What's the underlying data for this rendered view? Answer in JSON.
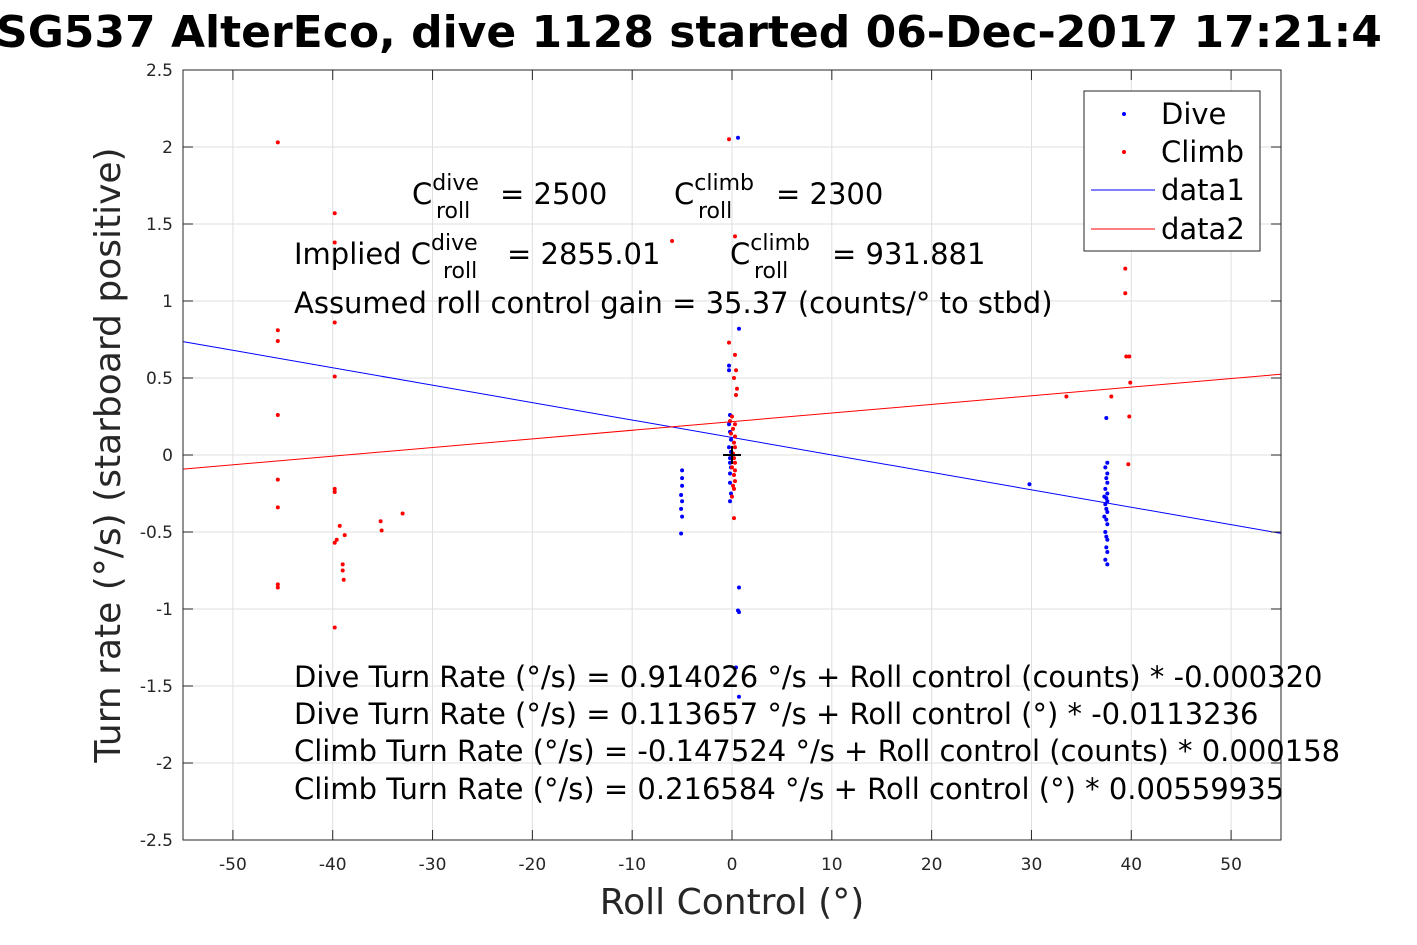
{
  "chart_data": {
    "type": "scatter",
    "title": "SG537 AlterEco, dive 1128 started 06-Dec-2017 17:21:4",
    "xlabel": "Roll Control (°)",
    "ylabel": "Turn rate (°/s) (starboard positive)",
    "xlim": [
      -55,
      55
    ],
    "ylim": [
      -2.5,
      2.5
    ],
    "xticks": [
      "-50",
      "-40",
      "-30",
      "-20",
      "-10",
      "0",
      "10",
      "20",
      "30",
      "40",
      "50"
    ],
    "yticks": [
      "-2.5",
      "-2",
      "-1.5",
      "-1",
      "-0.5",
      "0",
      "0.5",
      "1",
      "1.5",
      "2",
      "2.5"
    ],
    "grid": true,
    "legend_position": "top-right",
    "legend": [
      "Dive",
      "Climb",
      "data1",
      "data2"
    ],
    "colors": {
      "dive": "#0000ff",
      "climb": "#ff0000"
    },
    "annotations": {
      "c_dive_prefix": "C",
      "c_dive_sup": "dive",
      "c_dive_sub": "roll",
      "c_dive_val": "= 2500",
      "c_climb_prefix": "C",
      "c_climb_sup": "climb",
      "c_climb_sub": "roll",
      "c_climb_val": "= 2300",
      "implied_prefix": "Implied C",
      "implied_dive_sup": "dive",
      "implied_dive_sub": "roll",
      "implied_dive_val": "= 2855.01",
      "implied_climb_prefix": "C",
      "implied_climb_sup": "climb",
      "implied_climb_sub": "roll",
      "implied_climb_val": "= 931.881",
      "gain": "Assumed roll control gain = 35.37 (counts/° to stbd)",
      "eq1": "Dive Turn Rate (°/s) = 0.914026 °/s + Roll control (counts) * -0.000320",
      "eq2": "Dive Turn Rate (°/s) = 0.113657 °/s + Roll control (°) * -0.0113236",
      "eq3": "Climb Turn Rate (°/s) = -0.147524 °/s + Roll control (counts) * 0.000158",
      "eq4": "Climb Turn Rate (°/s) = 0.216584 °/s + Roll control (°) * 0.00559935"
    },
    "series": [
      {
        "name": "Dive",
        "kind": "scatter",
        "points": [
          [
            0.6,
            2.06
          ],
          [
            0.7,
            0.82
          ],
          [
            -0.3,
            0.58
          ],
          [
            -0.3,
            0.55
          ],
          [
            -0.2,
            0.26
          ],
          [
            -0.3,
            0.2
          ],
          [
            -0.2,
            0.15
          ],
          [
            -0.1,
            0.1
          ],
          [
            -0.3,
            0.05
          ],
          [
            -0.1,
            0.02
          ],
          [
            -0.2,
            -0.02
          ],
          [
            -0.2,
            -0.05
          ],
          [
            -0.1,
            -0.08
          ],
          [
            -0.2,
            -0.12
          ],
          [
            -0.2,
            -0.18
          ],
          [
            -0.1,
            -0.25
          ],
          [
            -0.2,
            -0.3
          ],
          [
            0.7,
            -0.86
          ],
          [
            0.6,
            -1.01
          ],
          [
            0.7,
            -1.02
          ],
          [
            0.4,
            -1.38
          ],
          [
            0.7,
            -1.57
          ],
          [
            -5.0,
            -0.1
          ],
          [
            -5.0,
            -0.15
          ],
          [
            -5.0,
            -0.2
          ],
          [
            -5.1,
            -0.26
          ],
          [
            -5.0,
            -0.3
          ],
          [
            -5.1,
            -0.35
          ],
          [
            -5.0,
            -0.4
          ],
          [
            -5.1,
            -0.51
          ],
          [
            29.8,
            -0.19
          ],
          [
            37.5,
            0.24
          ],
          [
            37.6,
            -0.05
          ],
          [
            37.4,
            -0.08
          ],
          [
            37.6,
            -0.12
          ],
          [
            37.5,
            -0.15
          ],
          [
            37.6,
            -0.18
          ],
          [
            37.4,
            -0.22
          ],
          [
            37.6,
            -0.25
          ],
          [
            37.3,
            -0.27
          ],
          [
            37.5,
            -0.28
          ],
          [
            37.6,
            -0.3
          ],
          [
            37.4,
            -0.32
          ],
          [
            37.5,
            -0.35
          ],
          [
            37.6,
            -0.37
          ],
          [
            37.3,
            -0.4
          ],
          [
            37.5,
            -0.42
          ],
          [
            37.6,
            -0.45
          ],
          [
            37.4,
            -0.5
          ],
          [
            37.5,
            -0.53
          ],
          [
            37.6,
            -0.55
          ],
          [
            37.5,
            -0.6
          ],
          [
            37.6,
            -0.63
          ],
          [
            37.4,
            -0.68
          ],
          [
            37.6,
            -0.71
          ]
        ]
      },
      {
        "name": "Climb",
        "kind": "scatter",
        "points": [
          [
            -45.5,
            2.03
          ],
          [
            -45.5,
            0.81
          ],
          [
            -45.5,
            0.74
          ],
          [
            -45.5,
            0.26
          ],
          [
            -45.5,
            -0.16
          ],
          [
            -45.5,
            -0.34
          ],
          [
            -45.5,
            -0.84
          ],
          [
            -45.5,
            -0.86
          ],
          [
            -39.8,
            1.57
          ],
          [
            -39.8,
            1.38
          ],
          [
            -39.8,
            0.86
          ],
          [
            -39.8,
            0.51
          ],
          [
            -39.8,
            -0.22
          ],
          [
            -39.8,
            -0.24
          ],
          [
            -39.8,
            -0.57
          ],
          [
            -39.8,
            -1.12
          ],
          [
            -39.6,
            -0.55
          ],
          [
            -39.3,
            -0.46
          ],
          [
            -38.8,
            -0.52
          ],
          [
            -39.0,
            -0.71
          ],
          [
            -39.0,
            -0.75
          ],
          [
            -38.9,
            -0.81
          ],
          [
            -35.2,
            -0.43
          ],
          [
            -35.1,
            -0.49
          ],
          [
            -33.0,
            -0.38
          ],
          [
            -6.0,
            1.39
          ],
          [
            -0.3,
            2.05
          ],
          [
            0.3,
            1.42
          ],
          [
            -0.3,
            0.73
          ],
          [
            0.3,
            0.65
          ],
          [
            0.4,
            0.55
          ],
          [
            0.2,
            0.5
          ],
          [
            0.5,
            0.43
          ],
          [
            0.4,
            0.39
          ],
          [
            0.0,
            0.25
          ],
          [
            -0.2,
            0.22
          ],
          [
            0.3,
            0.2
          ],
          [
            0.1,
            0.17
          ],
          [
            -0.1,
            0.14
          ],
          [
            0.3,
            0.12
          ],
          [
            0.2,
            0.08
          ],
          [
            0.3,
            0.05
          ],
          [
            0.1,
            0.01
          ],
          [
            0.2,
            -0.02
          ],
          [
            0.3,
            -0.05
          ],
          [
            0.0,
            -0.08
          ],
          [
            0.3,
            -0.1
          ],
          [
            0.2,
            -0.13
          ],
          [
            0.3,
            -0.17
          ],
          [
            0.1,
            -0.2
          ],
          [
            0.2,
            -0.22
          ],
          [
            0.0,
            -0.27
          ],
          [
            0.2,
            -0.41
          ],
          [
            33.5,
            0.38
          ],
          [
            38.0,
            0.38
          ],
          [
            39.4,
            1.21
          ],
          [
            39.4,
            1.05
          ],
          [
            39.5,
            0.64
          ],
          [
            39.8,
            0.64
          ],
          [
            39.9,
            0.47
          ],
          [
            39.8,
            0.25
          ],
          [
            39.7,
            -0.06
          ]
        ]
      },
      {
        "name": "data1",
        "kind": "line",
        "x": [
          -55,
          55
        ],
        "y": [
          0.7364,
          -0.5091
        ]
      },
      {
        "name": "data2",
        "kind": "line",
        "x": [
          -55,
          55
        ],
        "y": [
          -0.0914,
          0.5246
        ]
      }
    ]
  }
}
